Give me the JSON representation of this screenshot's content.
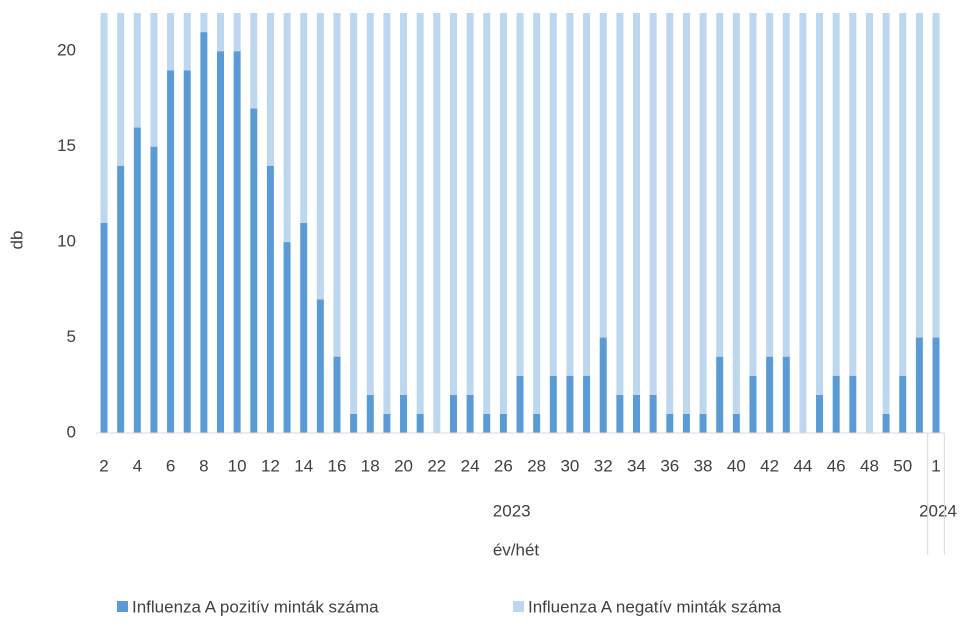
{
  "chart_data": {
    "type": "stacked_bar",
    "x_label": "év/hét",
    "y_label": "db",
    "categories": [
      2,
      null,
      4,
      null,
      6,
      null,
      8,
      null,
      10,
      null,
      12,
      null,
      14,
      null,
      16,
      null,
      18,
      null,
      20,
      null,
      22,
      null,
      24,
      null,
      26,
      null,
      28,
      null,
      30,
      null,
      32,
      null,
      34,
      null,
      36,
      null,
      38,
      null,
      40,
      null,
      42,
      null,
      44,
      null,
      46,
      null,
      48,
      null,
      50,
      null,
      1
    ],
    "x_groups": [
      {
        "label": "2023",
        "count": 50
      },
      {
        "label": "2024",
        "count": 1
      }
    ],
    "series": [
      {
        "name": "Influenza A pozitív minták száma",
        "color": "#5b9bd5",
        "values": [
          11,
          14,
          16,
          15,
          19,
          19,
          21,
          20,
          20,
          17,
          14,
          10,
          11,
          7,
          4,
          1,
          2,
          1,
          2,
          1,
          0,
          2,
          2,
          1,
          1,
          3,
          1,
          3,
          3,
          3,
          5,
          2,
          2,
          2,
          1,
          1,
          1,
          4,
          1,
          3,
          4,
          4,
          0,
          2,
          3,
          3,
          0,
          1,
          3,
          5,
          5
        ]
      },
      {
        "name": "Influenza A negatív minták száma",
        "color": "#bdd7ee",
        "values": [
          11,
          8,
          6,
          7,
          3,
          3,
          1,
          2,
          2,
          5,
          8,
          12,
          11,
          15,
          18,
          21,
          20,
          21,
          20,
          21,
          22,
          20,
          20,
          21,
          21,
          19,
          21,
          19,
          19,
          19,
          17,
          20,
          20,
          20,
          21,
          21,
          21,
          18,
          21,
          19,
          18,
          18,
          22,
          20,
          19,
          19,
          22,
          21,
          19,
          17,
          17
        ]
      }
    ],
    "ylim": [
      0,
      22
    ],
    "yticks": [
      0,
      5,
      10,
      15,
      20
    ],
    "legend": "bottom"
  }
}
